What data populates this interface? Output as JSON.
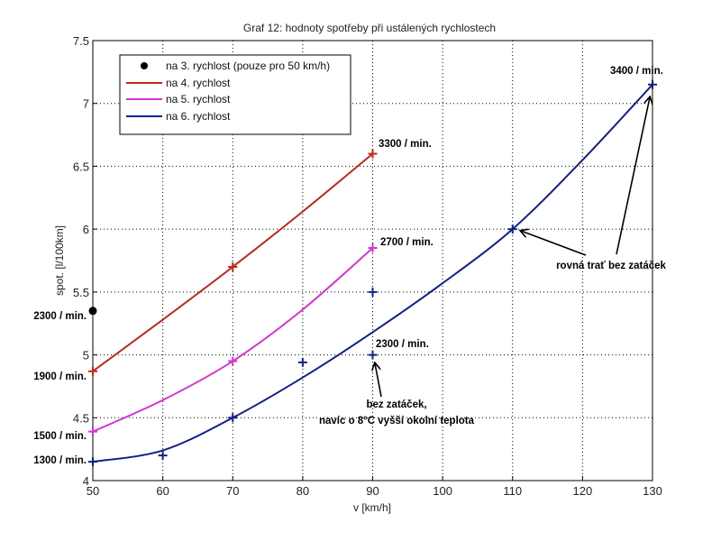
{
  "chart_data": {
    "type": "line",
    "title": "Graf 12: hodnoty spotřeby při ustálených rychlostech",
    "xlabel": "v [km/h]",
    "ylabel": "spot. [l/100km]",
    "xlim": [
      50,
      130
    ],
    "ylim": [
      4,
      7.5
    ],
    "xticks": [
      "50",
      "60",
      "70",
      "80",
      "90",
      "100",
      "110",
      "120",
      "130"
    ],
    "yticks": [
      "4",
      "4.5",
      "5",
      "5.5",
      "6",
      "6.5",
      "7",
      "7.5"
    ],
    "grid": true,
    "legend_position": "top-left",
    "series": [
      {
        "name": "na 3. rychlost (pouze pro 50 km/h)",
        "color": "#000000",
        "style": "marker",
        "curve": [],
        "markers": [
          [
            50,
            5.35
          ]
        ]
      },
      {
        "name": "na 4. rychlost",
        "color": "#c0281c",
        "style": "line",
        "curve": [
          [
            50,
            4.87
          ],
          [
            60,
            5.28
          ],
          [
            70,
            5.7
          ],
          [
            80,
            6.14
          ],
          [
            90,
            6.6
          ]
        ],
        "markers": [
          [
            50,
            4.87
          ],
          [
            70,
            5.7
          ],
          [
            90,
            6.6
          ]
        ]
      },
      {
        "name": "na 5. rychlost",
        "color": "#d633d6",
        "style": "line",
        "curve": [
          [
            50,
            4.39
          ],
          [
            60,
            4.64
          ],
          [
            70,
            4.95
          ],
          [
            80,
            5.36
          ],
          [
            90,
            5.85
          ]
        ],
        "markers": [
          [
            50,
            4.39
          ],
          [
            70,
            4.95
          ],
          [
            90,
            5.85
          ]
        ]
      },
      {
        "name": "na 6. rychlost",
        "color": "#10208c",
        "style": "line",
        "curve": [
          [
            50,
            4.15
          ],
          [
            60,
            4.24
          ],
          [
            70,
            4.5
          ],
          [
            80,
            4.82
          ],
          [
            90,
            5.18
          ],
          [
            100,
            5.57
          ],
          [
            110,
            6.0
          ],
          [
            120,
            6.55
          ],
          [
            130,
            7.15
          ]
        ],
        "markers": [
          [
            50,
            4.15
          ],
          [
            60,
            4.2
          ],
          [
            70,
            4.5
          ],
          [
            80,
            4.94
          ],
          [
            90,
            5.5
          ],
          [
            90,
            5.0
          ],
          [
            110,
            6.0
          ],
          [
            130,
            7.15
          ]
        ]
      }
    ],
    "annotations": {
      "rpm_3300": "3300 / min.",
      "rpm_2700": "2700 / min.",
      "rpm_2300_gear6": "2300 / min.",
      "rpm_3400": "3400 / min.",
      "rpm_2300_gear3": "2300 / min.",
      "rpm_1900": "1900 / min.",
      "rpm_1500": "1500 / min.",
      "rpm_1300": "1300 / min.",
      "bez_zatacek_1": "bez zatáček,",
      "bez_zatacek_2": "navíc o 8°C vyšší okolní teplota",
      "rovna_trat": "rovná trať bez zatáček"
    }
  }
}
